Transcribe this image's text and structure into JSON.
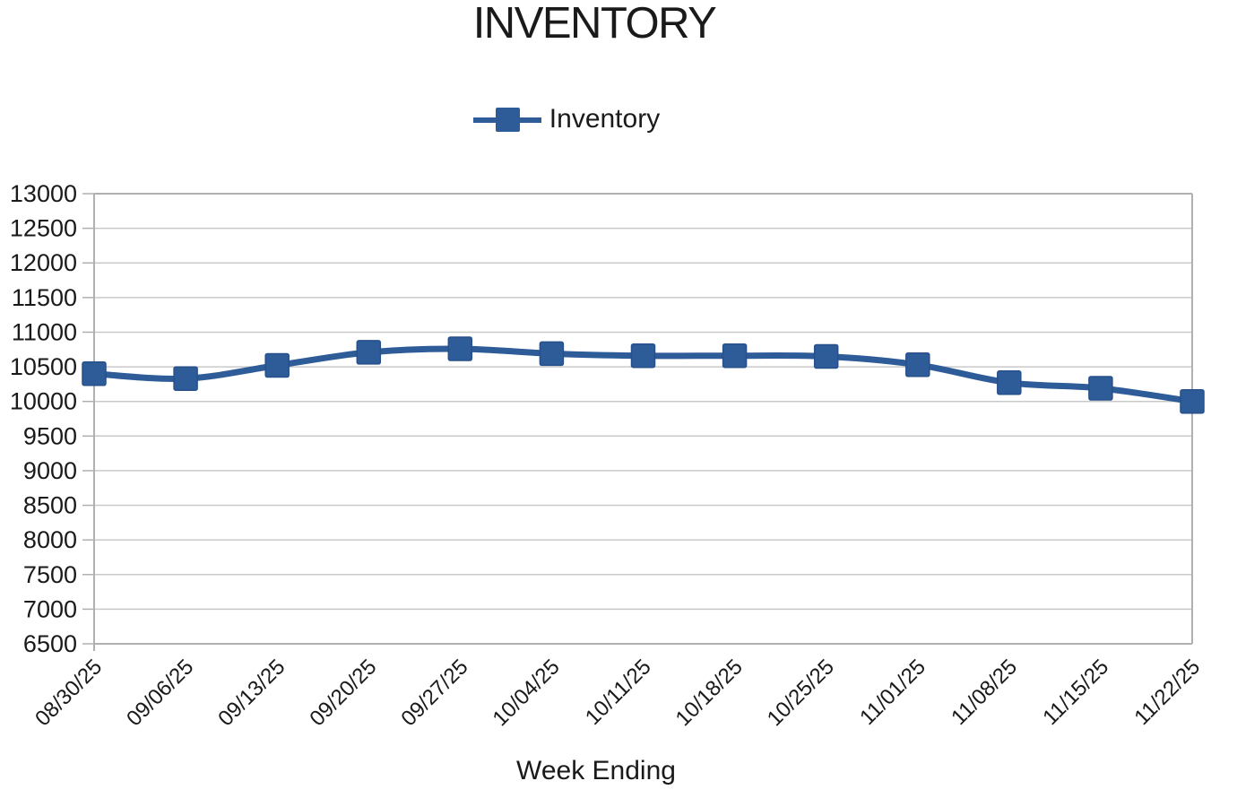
{
  "title": "INVENTORY",
  "legend": {
    "label": "Inventory"
  },
  "x_axis_title": "Week Ending",
  "colors": {
    "series_blue": "#2e5c99",
    "series_blue_edge": "#27508a",
    "gridline": "#c9c9c9",
    "axis_border": "#b0b0b0",
    "text": "#1a1a1a"
  },
  "chart_data": {
    "type": "line",
    "title": "INVENTORY",
    "xlabel": "Week Ending",
    "ylabel": "",
    "legend_position": "top-center",
    "grid": "horizontal",
    "marker": "square",
    "line_smoothing": true,
    "ylim": [
      6500,
      13000
    ],
    "ytick_step": 500,
    "yticks": [
      6500,
      7000,
      7500,
      8000,
      8500,
      9000,
      9500,
      10000,
      10500,
      11000,
      11500,
      12000,
      12500,
      13000
    ],
    "categories": [
      "08/30/25",
      "09/06/25",
      "09/13/25",
      "09/20/25",
      "09/27/25",
      "10/04/25",
      "10/11/25",
      "10/18/25",
      "10/25/25",
      "11/01/25",
      "11/08/25",
      "11/15/25",
      "11/22/25"
    ],
    "series": [
      {
        "name": "Inventory",
        "color": "#2e5c99",
        "values": [
          10400,
          10330,
          10520,
          10710,
          10760,
          10690,
          10660,
          10660,
          10650,
          10530,
          10270,
          10190,
          10000
        ]
      }
    ]
  }
}
